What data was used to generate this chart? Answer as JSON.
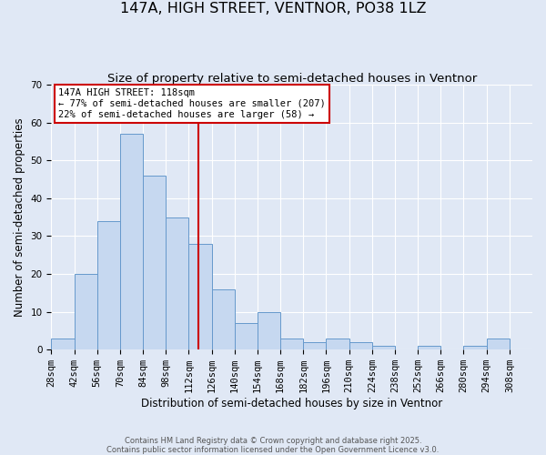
{
  "title_line1": "147A, HIGH STREET, VENTNOR, PO38 1LZ",
  "title_line2": "Size of property relative to semi-detached houses in Ventnor",
  "xlabel": "Distribution of semi-detached houses by size in Ventnor",
  "ylabel": "Number of semi-detached properties",
  "bin_start": 28,
  "bin_width": 14,
  "bar_heights": [
    3,
    20,
    34,
    57,
    46,
    35,
    28,
    16,
    7,
    10,
    3,
    2,
    3,
    2,
    1,
    0,
    1,
    0,
    1,
    3
  ],
  "bar_facecolor": "#c6d8f0",
  "bar_edgecolor": "#6699cc",
  "property_size": 118,
  "vline_color": "#cc0000",
  "annotation_line1": "147A HIGH STREET: 118sqm",
  "annotation_line2": "← 77% of semi-detached houses are smaller (207)",
  "annotation_line3": "22% of semi-detached houses are larger (58) →",
  "annotation_box_edgecolor": "#cc0000",
  "annotation_box_facecolor": "#ffffff",
  "ylim": [
    0,
    70
  ],
  "yticks": [
    0,
    10,
    20,
    30,
    40,
    50,
    60,
    70
  ],
  "xlim_left": 28,
  "xlim_right": 322,
  "background_color": "#e0e8f5",
  "grid_color": "#ffffff",
  "footer_line1": "Contains HM Land Registry data © Crown copyright and database right 2025.",
  "footer_line2": "Contains public sector information licensed under the Open Government Licence v3.0.",
  "title_fontsize": 11.5,
  "subtitle_fontsize": 9.5,
  "axis_label_fontsize": 8.5,
  "tick_fontsize": 7.5,
  "annotation_fontsize": 7.5,
  "footer_fontsize": 6.0,
  "xtick_labels": [
    "28sqm",
    "42sqm",
    "56sqm",
    "70sqm",
    "84sqm",
    "98sqm",
    "112sqm",
    "126sqm",
    "140sqm",
    "154sqm",
    "168sqm",
    "182sqm",
    "196sqm",
    "210sqm",
    "224sqm",
    "238sqm",
    "252sqm",
    "266sqm",
    "280sqm",
    "294sqm",
    "308sqm"
  ]
}
